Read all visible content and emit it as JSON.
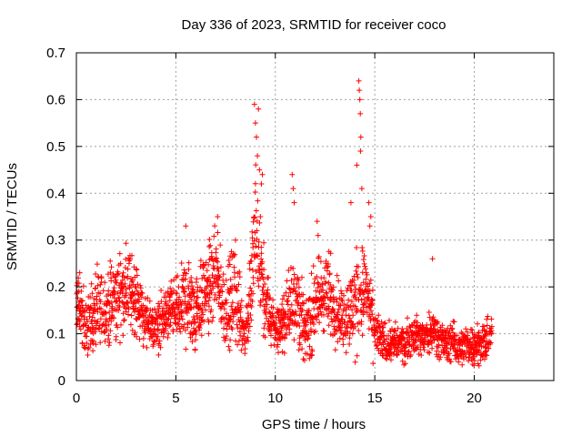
{
  "chart_data": {
    "type": "scatter",
    "title": "Day 336 of 2023, SRMTID for receiver coco",
    "xlabel": "GPS time / hours",
    "ylabel": "SRMTID / TECUs",
    "xlim": [
      0,
      24
    ],
    "ylim": [
      0,
      0.7
    ],
    "x_ticks": [
      0,
      5,
      10,
      15,
      20
    ],
    "x_tick_labels": [
      "0",
      "5",
      "10",
      "15",
      "20"
    ],
    "y_ticks": [
      0,
      0.1,
      0.2,
      0.3,
      0.4,
      0.5,
      0.6,
      0.7
    ],
    "y_tick_labels": [
      "0",
      "0.1",
      "0.2",
      "0.3",
      "0.4",
      "0.5",
      "0.6",
      "0.7"
    ],
    "grid": true,
    "marker": "+",
    "marker_color": "#ff0000",
    "envelope": {
      "description": "Dense red '+' markers; approximate median and spread by hour",
      "hours": [
        0,
        0.5,
        1,
        1.5,
        2,
        2.5,
        3,
        3.5,
        4,
        4.5,
        5,
        5.5,
        6,
        6.5,
        7,
        7.5,
        8,
        8.5,
        9,
        9.5,
        10,
        10.5,
        11,
        11.5,
        12,
        12.5,
        13,
        13.5,
        14,
        14.5,
        15,
        15.5,
        16,
        16.5,
        17,
        17.5,
        18,
        18.5,
        19,
        19.5,
        20,
        20.5,
        20.9
      ],
      "median": [
        0.18,
        0.12,
        0.14,
        0.15,
        0.17,
        0.2,
        0.18,
        0.12,
        0.11,
        0.14,
        0.15,
        0.17,
        0.15,
        0.19,
        0.22,
        0.15,
        0.18,
        0.09,
        0.3,
        0.16,
        0.11,
        0.13,
        0.2,
        0.1,
        0.16,
        0.19,
        0.16,
        0.13,
        0.16,
        0.2,
        0.1,
        0.08,
        0.08,
        0.08,
        0.1,
        0.09,
        0.11,
        0.08,
        0.08,
        0.07,
        0.08,
        0.08,
        0.1
      ],
      "spread": [
        0.05,
        0.05,
        0.06,
        0.06,
        0.06,
        0.06,
        0.06,
        0.04,
        0.04,
        0.04,
        0.05,
        0.07,
        0.06,
        0.07,
        0.07,
        0.06,
        0.08,
        0.03,
        0.12,
        0.06,
        0.04,
        0.04,
        0.09,
        0.04,
        0.07,
        0.07,
        0.06,
        0.05,
        0.08,
        0.07,
        0.04,
        0.03,
        0.03,
        0.03,
        0.03,
        0.03,
        0.03,
        0.03,
        0.03,
        0.03,
        0.03,
        0.03,
        0.03
      ]
    },
    "spikes": [
      {
        "x": 8.95,
        "y": 0.59
      },
      {
        "x": 9.0,
        "y": 0.55
      },
      {
        "x": 9.05,
        "y": 0.52
      },
      {
        "x": 9.1,
        "y": 0.48
      },
      {
        "x": 9.15,
        "y": 0.58
      },
      {
        "x": 9.2,
        "y": 0.45
      },
      {
        "x": 9.3,
        "y": 0.42
      },
      {
        "x": 9.35,
        "y": 0.44
      },
      {
        "x": 9.25,
        "y": 0.35
      },
      {
        "x": 10.85,
        "y": 0.44
      },
      {
        "x": 10.9,
        "y": 0.41
      },
      {
        "x": 10.95,
        "y": 0.38
      },
      {
        "x": 12.1,
        "y": 0.34
      },
      {
        "x": 12.15,
        "y": 0.31
      },
      {
        "x": 13.8,
        "y": 0.38
      },
      {
        "x": 14.1,
        "y": 0.46
      },
      {
        "x": 14.2,
        "y": 0.64
      },
      {
        "x": 14.22,
        "y": 0.62
      },
      {
        "x": 14.25,
        "y": 0.6
      },
      {
        "x": 14.27,
        "y": 0.57
      },
      {
        "x": 14.3,
        "y": 0.52
      },
      {
        "x": 14.28,
        "y": 0.49
      },
      {
        "x": 14.35,
        "y": 0.41
      },
      {
        "x": 14.7,
        "y": 0.38
      },
      {
        "x": 14.8,
        "y": 0.35
      },
      {
        "x": 14.75,
        "y": 0.33
      },
      {
        "x": 7.1,
        "y": 0.35
      },
      {
        "x": 5.5,
        "y": 0.33
      },
      {
        "x": 8.0,
        "y": 0.3
      },
      {
        "x": 17.9,
        "y": 0.26
      }
    ]
  }
}
